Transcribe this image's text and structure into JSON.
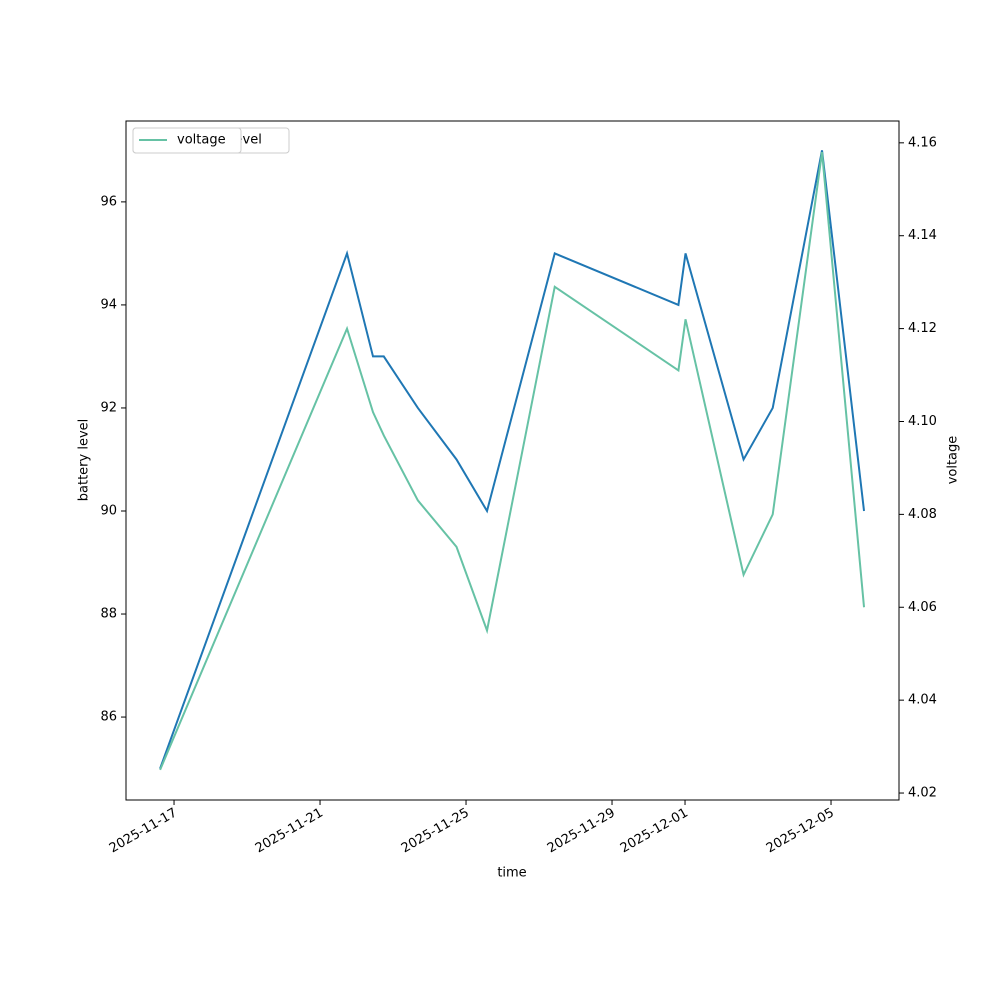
{
  "chart_data": {
    "type": "line",
    "x_label": "time",
    "y_label": "battery level",
    "y2_label": "voltage",
    "x": [
      "2025-11-16T14:50",
      "2025-11-21T17:45",
      "2025-11-22T10:50",
      "2025-11-22T17:55",
      "2025-11-23T16:20",
      "2025-11-24T17:45",
      "2025-11-25T13:48",
      "2025-11-27T10:20",
      "2025-11-30T19:40",
      "2025-12-01T00:20",
      "2025-12-02T14:30",
      "2025-12-03T09:40",
      "2025-12-04T18:05",
      "2025-12-05T21:42"
    ],
    "series": [
      {
        "name": "battery_level",
        "color": "#1f77b4",
        "axis": "y",
        "values": [
          85,
          95,
          93,
          93,
          92,
          91,
          90,
          95,
          94,
          95,
          91,
          92,
          97,
          90
        ]
      },
      {
        "name": "voltage",
        "color": "#66c2a5",
        "axis": "y2",
        "values": [
          4.025,
          4.12,
          4.102,
          4.097,
          4.083,
          4.073,
          4.055,
          4.129,
          4.111,
          4.122,
          4.067,
          4.08,
          4.158,
          4.06
        ]
      }
    ],
    "xlim": [
      "2025-11-15T16:25",
      "2025-12-06T20:42"
    ],
    "xticks": [
      {
        "value": "2025-11-17T00:00",
        "label": "2025-11-17"
      },
      {
        "value": "2025-11-21T00:00",
        "label": "2025-11-21"
      },
      {
        "value": "2025-11-25T00:00",
        "label": "2025-11-25"
      },
      {
        "value": "2025-11-29T00:00",
        "label": "2025-11-29"
      },
      {
        "value": "2025-12-01T00:00",
        "label": "2025-12-01"
      },
      {
        "value": "2025-12-05T00:00",
        "label": "2025-12-05"
      }
    ],
    "ylim": [
      84.39,
      97.57
    ],
    "yticks": [
      86,
      88,
      90,
      92,
      94,
      96
    ],
    "y2lim": [
      4.0185,
      4.1647
    ],
    "y2ticks": [
      4.02,
      4.04,
      4.06,
      4.08,
      {
        "value": 4.1,
        "label": "4.10"
      },
      4.12,
      4.14,
      4.16
    ],
    "legend": "upper left"
  }
}
